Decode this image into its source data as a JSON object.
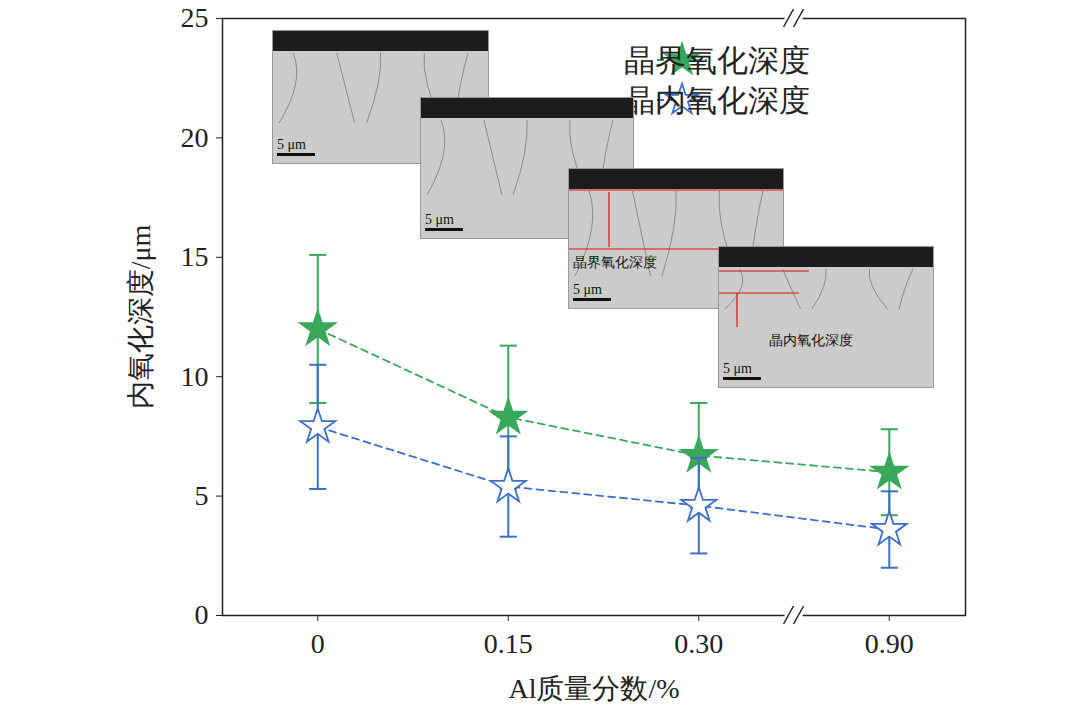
{
  "chart_data": {
    "type": "line",
    "x_label": "Al质量分数/%",
    "y_label": "内氧化深度/μm",
    "categories": [
      "0",
      "0.15",
      "0.30",
      "0.90"
    ],
    "series": [
      {
        "name": "晶界氧化深度",
        "color": "#3aa85a",
        "marker": "filled_star",
        "line_style": "dashed",
        "values": [
          12.0,
          8.3,
          6.7,
          6.0
        ],
        "errors": [
          3.1,
          3.0,
          2.2,
          1.8
        ]
      },
      {
        "name": "晶内氧化深度",
        "color": "#3d6fc6",
        "marker": "open_star",
        "line_style": "dashed",
        "values": [
          7.9,
          5.4,
          4.6,
          3.6
        ],
        "errors": [
          2.6,
          2.1,
          2.0,
          1.6
        ]
      }
    ],
    "ylim": [
      0,
      25
    ],
    "yticks": [
      0,
      5,
      10,
      15,
      20,
      25
    ],
    "grid": false,
    "legend": "top-right",
    "insets": [
      {
        "scale_bar": "5 μm"
      },
      {
        "scale_bar": "5 μm"
      },
      {
        "scale_bar": "5 μm",
        "label": "晶界氧化深度"
      },
      {
        "scale_bar": "5 μm",
        "label": "晶内氧化深度"
      }
    ]
  }
}
